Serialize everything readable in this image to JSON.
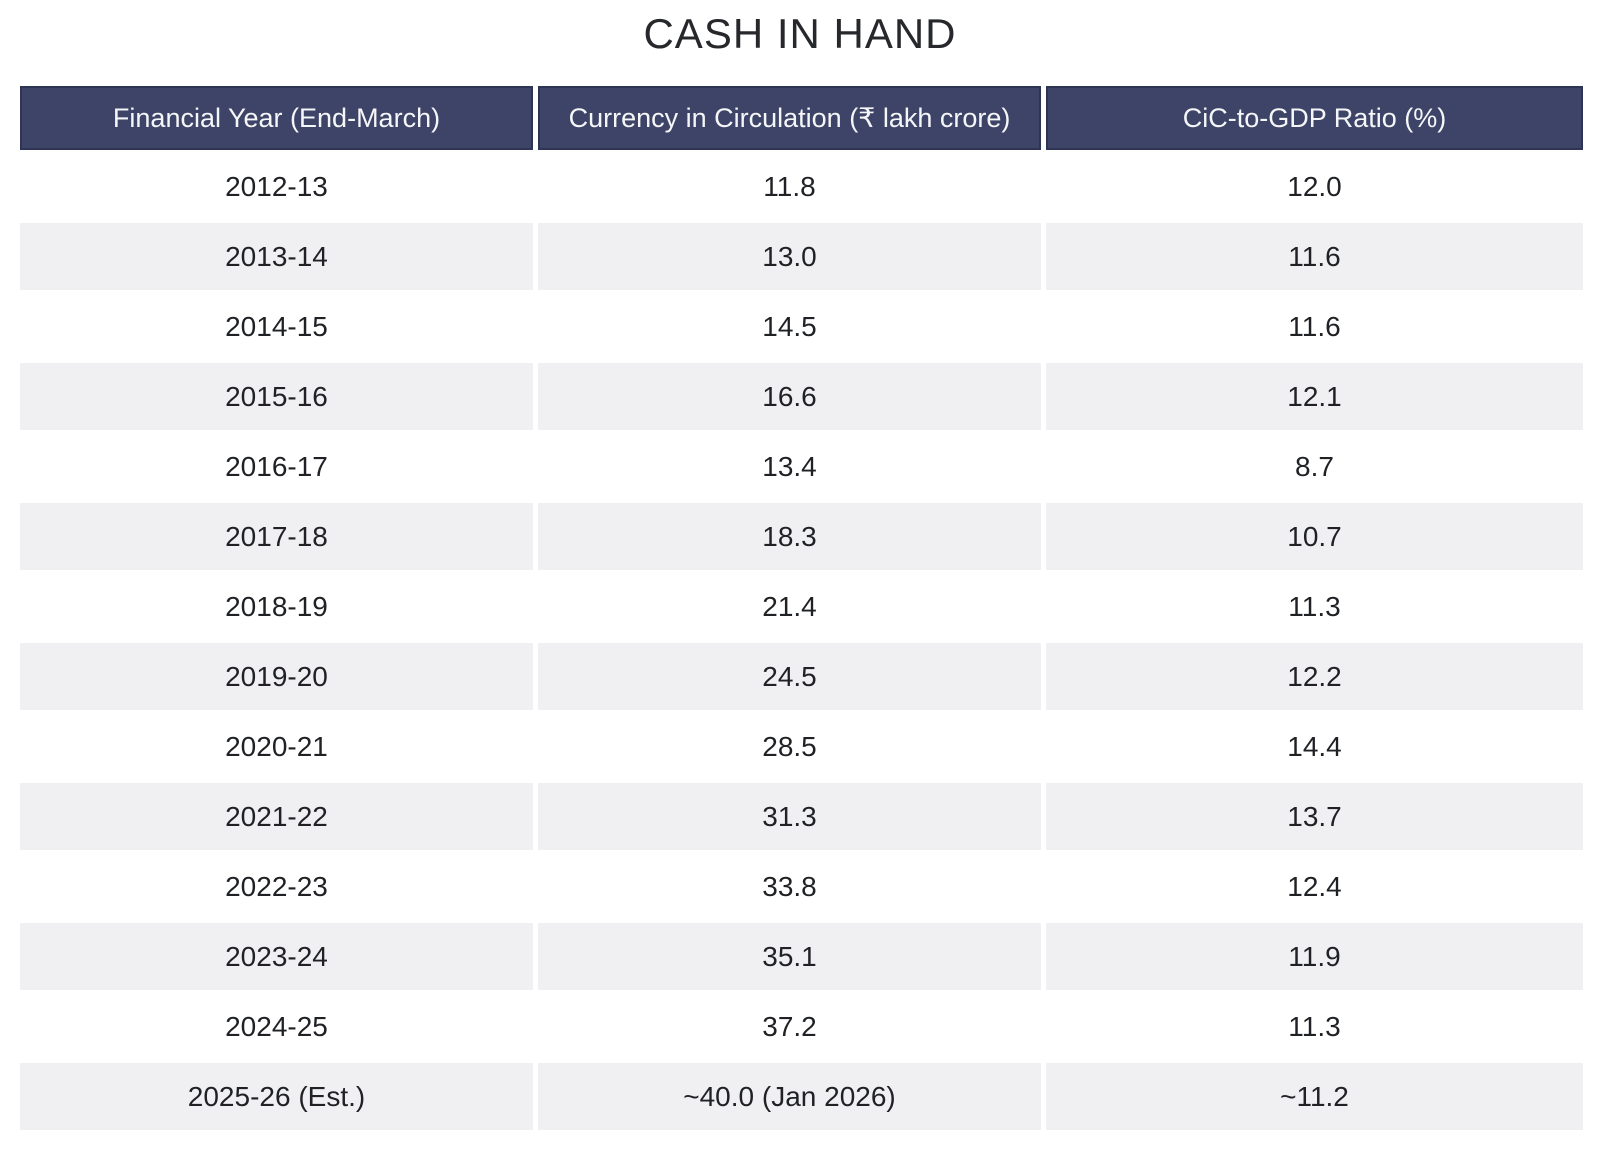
{
  "title": "CASH IN HAND",
  "table": {
    "headers": [
      "Financial Year (End-March)",
      "Currency in Circulation (₹ lakh crore)",
      "CiC-to-GDP Ratio (%)"
    ],
    "rows": [
      [
        "2012-13",
        "11.8",
        "12.0"
      ],
      [
        "2013-14",
        "13.0",
        "11.6"
      ],
      [
        "2014-15",
        "14.5",
        "11.6"
      ],
      [
        "2015-16",
        "16.6",
        "12.1"
      ],
      [
        "2016-17",
        "13.4",
        "8.7"
      ],
      [
        "2017-18",
        "18.3",
        "10.7"
      ],
      [
        "2018-19",
        "21.4",
        "11.3"
      ],
      [
        "2019-20",
        "24.5",
        "12.2"
      ],
      [
        "2020-21",
        "28.5",
        "14.4"
      ],
      [
        "2021-22",
        "31.3",
        "13.7"
      ],
      [
        "2022-23",
        "33.8",
        "12.4"
      ],
      [
        "2023-24",
        "35.1",
        "11.9"
      ],
      [
        "2024-25",
        "37.2",
        "11.3"
      ],
      [
        "2025-26 (Est.)",
        "~40.0 (Jan 2026)",
        "~11.2"
      ]
    ]
  },
  "colors": {
    "header_bg": "#3e4468",
    "header_border": "#2e3454",
    "header_text": "#f5f6f8",
    "row_alt_bg": "#f0f0f2",
    "body_text": "#1f2124",
    "title_text": "#26282b"
  },
  "chart_data": {
    "type": "table",
    "title": "CASH IN HAND",
    "columns": [
      "Financial Year (End-March)",
      "Currency in Circulation (₹ lakh crore)",
      "CiC-to-GDP Ratio (%)"
    ],
    "rows": [
      {
        "financial_year": "2012-13",
        "currency_in_circulation_lakh_crore": 11.8,
        "cic_to_gdp_ratio_pct": 12.0
      },
      {
        "financial_year": "2013-14",
        "currency_in_circulation_lakh_crore": 13.0,
        "cic_to_gdp_ratio_pct": 11.6
      },
      {
        "financial_year": "2014-15",
        "currency_in_circulation_lakh_crore": 14.5,
        "cic_to_gdp_ratio_pct": 11.6
      },
      {
        "financial_year": "2015-16",
        "currency_in_circulation_lakh_crore": 16.6,
        "cic_to_gdp_ratio_pct": 12.1
      },
      {
        "financial_year": "2016-17",
        "currency_in_circulation_lakh_crore": 13.4,
        "cic_to_gdp_ratio_pct": 8.7
      },
      {
        "financial_year": "2017-18",
        "currency_in_circulation_lakh_crore": 18.3,
        "cic_to_gdp_ratio_pct": 10.7
      },
      {
        "financial_year": "2018-19",
        "currency_in_circulation_lakh_crore": 21.4,
        "cic_to_gdp_ratio_pct": 11.3
      },
      {
        "financial_year": "2019-20",
        "currency_in_circulation_lakh_crore": 24.5,
        "cic_to_gdp_ratio_pct": 12.2
      },
      {
        "financial_year": "2020-21",
        "currency_in_circulation_lakh_crore": 28.5,
        "cic_to_gdp_ratio_pct": 14.4
      },
      {
        "financial_year": "2021-22",
        "currency_in_circulation_lakh_crore": 31.3,
        "cic_to_gdp_ratio_pct": 13.7
      },
      {
        "financial_year": "2022-23",
        "currency_in_circulation_lakh_crore": 33.8,
        "cic_to_gdp_ratio_pct": 12.4
      },
      {
        "financial_year": "2023-24",
        "currency_in_circulation_lakh_crore": 35.1,
        "cic_to_gdp_ratio_pct": 11.9
      },
      {
        "financial_year": "2024-25",
        "currency_in_circulation_lakh_crore": 37.2,
        "cic_to_gdp_ratio_pct": 11.3
      },
      {
        "financial_year": "2025-26 (Est.)",
        "currency_in_circulation_lakh_crore": "~40.0 (Jan 2026)",
        "cic_to_gdp_ratio_pct": "~11.2"
      }
    ]
  }
}
